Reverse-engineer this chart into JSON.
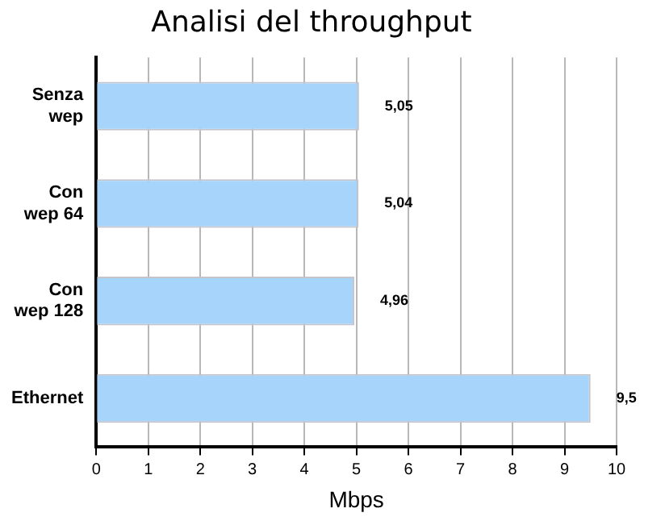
{
  "chart_data": {
    "type": "bar",
    "orientation": "horizontal",
    "title": "Analisi del throughput",
    "xlabel": "Mbps",
    "categories": [
      "Senza wep",
      "Con wep 64",
      "Con wep 128",
      "Ethernet"
    ],
    "values": [
      5.05,
      5.04,
      4.96,
      9.5
    ],
    "color": "#a6d4fa",
    "value_labels": [
      "5,05",
      "5,04",
      "4,96",
      "9,5"
    ],
    "xlim": [
      0,
      10
    ],
    "xticks": [
      0,
      1,
      2,
      3,
      4,
      5,
      6,
      7,
      8,
      9,
      10
    ],
    "grid": "x",
    "legend": false
  }
}
